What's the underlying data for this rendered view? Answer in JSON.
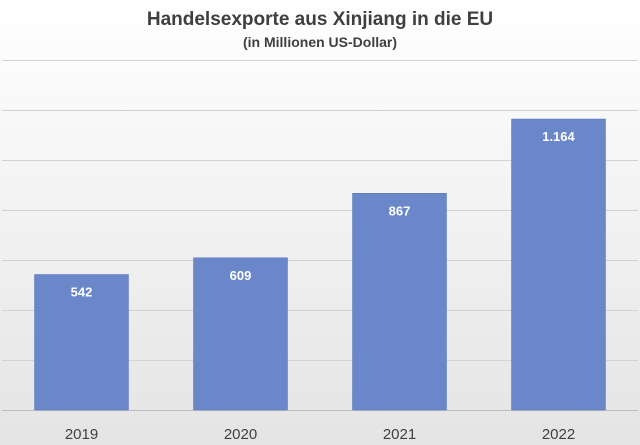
{
  "chart_data": {
    "type": "bar",
    "title": "Handelsexporte aus Xinjiang in die EU",
    "subtitle": "(in Millionen US-Dollar)",
    "categories": [
      "2019",
      "2020",
      "2021",
      "2022"
    ],
    "values": [
      542,
      609,
      867,
      1164
    ],
    "data_labels": [
      "542",
      "609",
      "867",
      "1.164"
    ],
    "ylim": [
      0,
      1400
    ],
    "grid": true,
    "legend": "none",
    "colors": {
      "bar": "#6a87c9",
      "label": "#ffffff"
    }
  }
}
